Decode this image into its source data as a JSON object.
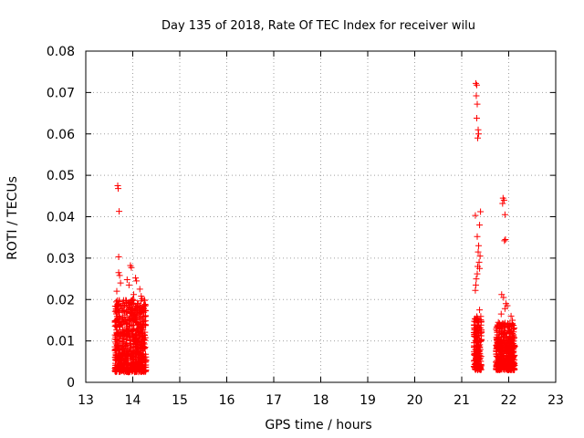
{
  "chart_data": {
    "type": "scatter",
    "title": "Day 135 of 2018, Rate Of TEC Index for receiver wilu",
    "xlabel": "GPS time / hours",
    "ylabel": "ROTI / TECUs",
    "xlim": [
      13,
      23
    ],
    "ylim": [
      0,
      0.08
    ],
    "x_ticks": [
      13,
      14,
      15,
      16,
      17,
      18,
      19,
      20,
      21,
      22,
      23
    ],
    "y_ticks": [
      0,
      0.01,
      0.02,
      0.03,
      0.04,
      0.05,
      0.06,
      0.07,
      0.08
    ],
    "x_tick_labels": [
      "13",
      "14",
      "15",
      "16",
      "17",
      "18",
      "19",
      "20",
      "21",
      "22",
      "23"
    ],
    "y_tick_labels": [
      "0",
      "0.01",
      "0.02",
      "0.03",
      "0.04",
      "0.05",
      "0.06",
      "0.07",
      "0.08"
    ],
    "grid": true,
    "marker": "+",
    "series": [
      {
        "name": "ROTI",
        "color": "#ff0000",
        "points": [
          [
            13.68,
            0.0475
          ],
          [
            13.69,
            0.0468
          ],
          [
            13.71,
            0.0413
          ],
          [
            13.7,
            0.0303
          ],
          [
            13.7,
            0.0265
          ],
          [
            13.72,
            0.0258
          ],
          [
            13.66,
            0.022
          ],
          [
            13.74,
            0.024
          ],
          [
            13.95,
            0.0282
          ],
          [
            13.97,
            0.0277
          ],
          [
            13.88,
            0.0248
          ],
          [
            13.92,
            0.0235
          ],
          [
            14.06,
            0.0252
          ],
          [
            14.08,
            0.0245
          ],
          [
            14.15,
            0.0225
          ],
          [
            14.18,
            0.0208
          ],
          [
            14.2,
            0.0202
          ],
          [
            14.02,
            0.0212
          ],
          [
            13.85,
            0.0198
          ],
          [
            14.12,
            0.019
          ],
          [
            13.67,
            0.0185
          ],
          [
            13.78,
            0.018
          ],
          [
            13.93,
            0.0175
          ],
          [
            14.22,
            0.017
          ],
          [
            13.7,
            0.016
          ],
          [
            13.82,
            0.015
          ],
          [
            14.05,
            0.0155
          ],
          [
            14.16,
            0.0145
          ],
          [
            13.75,
            0.014
          ],
          [
            13.98,
            0.0138
          ],
          [
            14.1,
            0.013
          ],
          [
            13.88,
            0.0125
          ],
          [
            13.69,
            0.012
          ],
          [
            14.19,
            0.0118
          ],
          [
            13.8,
            0.0112
          ],
          [
            14.01,
            0.011
          ],
          [
            13.72,
            0.0105
          ],
          [
            13.95,
            0.0102
          ],
          [
            14.14,
            0.01
          ],
          [
            13.86,
            0.0095
          ],
          [
            13.68,
            0.009
          ],
          [
            14.07,
            0.0088
          ],
          [
            13.78,
            0.0085
          ],
          [
            14.21,
            0.0082
          ],
          [
            13.91,
            0.008
          ],
          [
            13.73,
            0.0075
          ],
          [
            14.03,
            0.0072
          ],
          [
            14.17,
            0.007
          ],
          [
            13.84,
            0.0068
          ],
          [
            13.97,
            0.0065
          ],
          [
            13.7,
            0.0062
          ],
          [
            14.11,
            0.006
          ],
          [
            13.8,
            0.0058
          ],
          [
            14.0,
            0.0055
          ],
          [
            13.66,
            0.0052
          ],
          [
            14.2,
            0.005
          ],
          [
            13.9,
            0.0048
          ],
          [
            13.76,
            0.0045
          ],
          [
            14.09,
            0.0042
          ],
          [
            13.94,
            0.004
          ],
          [
            13.72,
            0.0038
          ],
          [
            14.15,
            0.0036
          ],
          [
            13.85,
            0.0035
          ],
          [
            14.04,
            0.0033
          ],
          [
            13.99,
            0.003
          ],
          [
            13.68,
            0.0032
          ],
          [
            14.22,
            0.0035
          ],
          [
            13.79,
            0.0042
          ],
          [
            21.3,
            0.0722
          ],
          [
            21.32,
            0.0718
          ],
          [
            21.31,
            0.0692
          ],
          [
            21.33,
            0.0672
          ],
          [
            21.32,
            0.0638
          ],
          [
            21.35,
            0.061
          ],
          [
            21.36,
            0.06
          ],
          [
            21.34,
            0.059
          ],
          [
            21.29,
            0.0403
          ],
          [
            21.4,
            0.0412
          ],
          [
            21.38,
            0.038
          ],
          [
            21.33,
            0.0352
          ],
          [
            21.36,
            0.033
          ],
          [
            21.35,
            0.0315
          ],
          [
            21.39,
            0.0305
          ],
          [
            21.37,
            0.029
          ],
          [
            21.34,
            0.028
          ],
          [
            21.38,
            0.0275
          ],
          [
            21.33,
            0.0262
          ],
          [
            21.31,
            0.025
          ],
          [
            21.3,
            0.0235
          ],
          [
            21.29,
            0.0222
          ],
          [
            21.38,
            0.0175
          ],
          [
            21.32,
            0.0155
          ],
          [
            21.34,
            0.0145
          ],
          [
            21.28,
            0.013
          ],
          [
            21.36,
            0.012
          ],
          [
            21.31,
            0.011
          ],
          [
            21.39,
            0.01
          ],
          [
            21.33,
            0.009
          ],
          [
            21.29,
            0.008
          ],
          [
            21.37,
            0.007
          ],
          [
            21.32,
            0.006
          ],
          [
            21.35,
            0.005
          ],
          [
            21.3,
            0.004
          ],
          [
            21.34,
            0.003
          ],
          [
            21.88,
            0.0445
          ],
          [
            21.9,
            0.044
          ],
          [
            21.87,
            0.0432
          ],
          [
            21.92,
            0.0405
          ],
          [
            21.93,
            0.0345
          ],
          [
            21.91,
            0.0342
          ],
          [
            21.85,
            0.0212
          ],
          [
            21.89,
            0.0205
          ],
          [
            21.94,
            0.019
          ],
          [
            21.97,
            0.0185
          ],
          [
            21.92,
            0.0178
          ],
          [
            21.84,
            0.0165
          ],
          [
            22.05,
            0.016
          ],
          [
            22.08,
            0.015
          ],
          [
            21.78,
            0.0145
          ],
          [
            21.98,
            0.014
          ],
          [
            22.02,
            0.0135
          ],
          [
            21.86,
            0.0128
          ],
          [
            21.93,
            0.012
          ],
          [
            22.1,
            0.0115
          ],
          [
            21.8,
            0.011
          ],
          [
            22.0,
            0.0105
          ],
          [
            21.88,
            0.01
          ],
          [
            22.06,
            0.0095
          ],
          [
            21.75,
            0.009
          ],
          [
            21.95,
            0.0085
          ],
          [
            22.09,
            0.008
          ],
          [
            21.82,
            0.0075
          ],
          [
            22.03,
            0.007
          ],
          [
            21.9,
            0.0065
          ],
          [
            21.77,
            0.006
          ],
          [
            22.07,
            0.0058
          ],
          [
            21.96,
            0.0055
          ],
          [
            21.84,
            0.005
          ],
          [
            22.01,
            0.0048
          ],
          [
            21.79,
            0.0045
          ],
          [
            22.1,
            0.0042
          ],
          [
            21.92,
            0.004
          ],
          [
            22.04,
            0.0035
          ],
          [
            22.0,
            0.003
          ]
        ]
      }
    ],
    "dense_clusters": [
      {
        "x_range": [
          13.62,
          14.28
        ],
        "y_range": [
          0.0025,
          0.02
        ],
        "count": 650
      },
      {
        "x_range": [
          21.26,
          21.42
        ],
        "y_range": [
          0.003,
          0.016
        ],
        "count": 170
      },
      {
        "x_range": [
          21.73,
          22.13
        ],
        "y_range": [
          0.003,
          0.0145
        ],
        "count": 420
      }
    ]
  }
}
